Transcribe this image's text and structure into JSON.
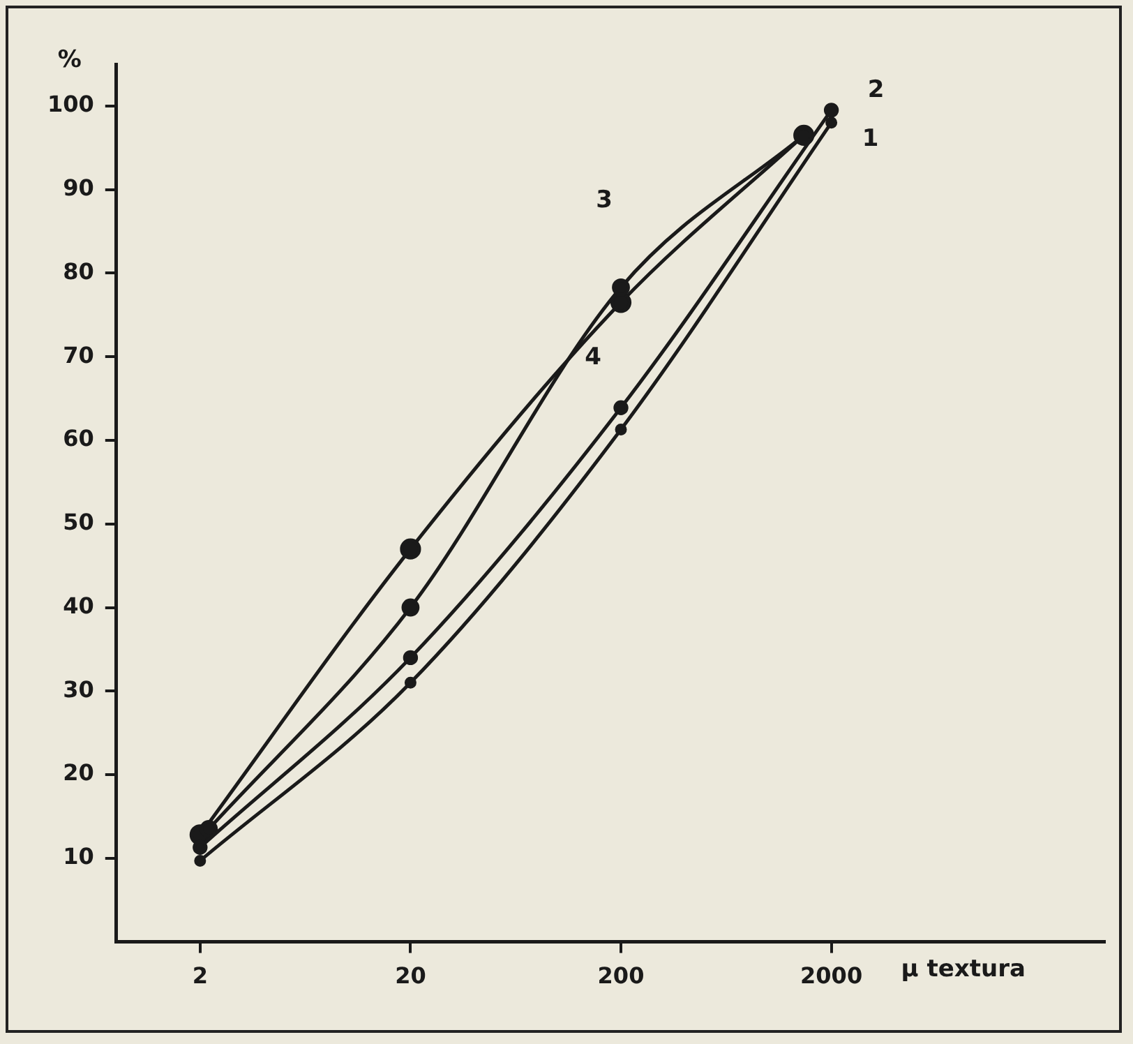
{
  "chart_data": {
    "type": "line",
    "xlabel": "µ textura",
    "ylabel": "%",
    "log": "x",
    "marker": "circle",
    "line_style": "solid",
    "grid": false,
    "legend": false,
    "xlim": [
      0.8,
      40000
    ],
    "xticks": [
      2,
      20,
      200,
      2000
    ],
    "ylim": [
      0,
      105
    ],
    "yticks": [
      10,
      20,
      30,
      40,
      50,
      60,
      70,
      80,
      90,
      100
    ],
    "series": [
      {
        "name": "1",
        "color": "#1a1a1a",
        "x": [
          2,
          20,
          200,
          2000
        ],
        "values": [
          9.7,
          31,
          61.3,
          98
        ]
      },
      {
        "name": "2",
        "color": "#1a1a1a",
        "x": [
          2,
          20,
          200,
          2000
        ],
        "values": [
          11.3,
          34,
          63.9,
          99.5
        ]
      },
      {
        "name": "3",
        "color": "#1a1a1a",
        "x": [
          2.2,
          20,
          200,
          1480
        ],
        "values": [
          13.5,
          40,
          78.3,
          96.5
        ]
      },
      {
        "name": "4",
        "color": "#1a1a1a",
        "x": [
          2,
          20,
          200,
          1480
        ],
        "values": [
          12.8,
          47,
          76.5,
          96.5
        ]
      }
    ]
  }
}
